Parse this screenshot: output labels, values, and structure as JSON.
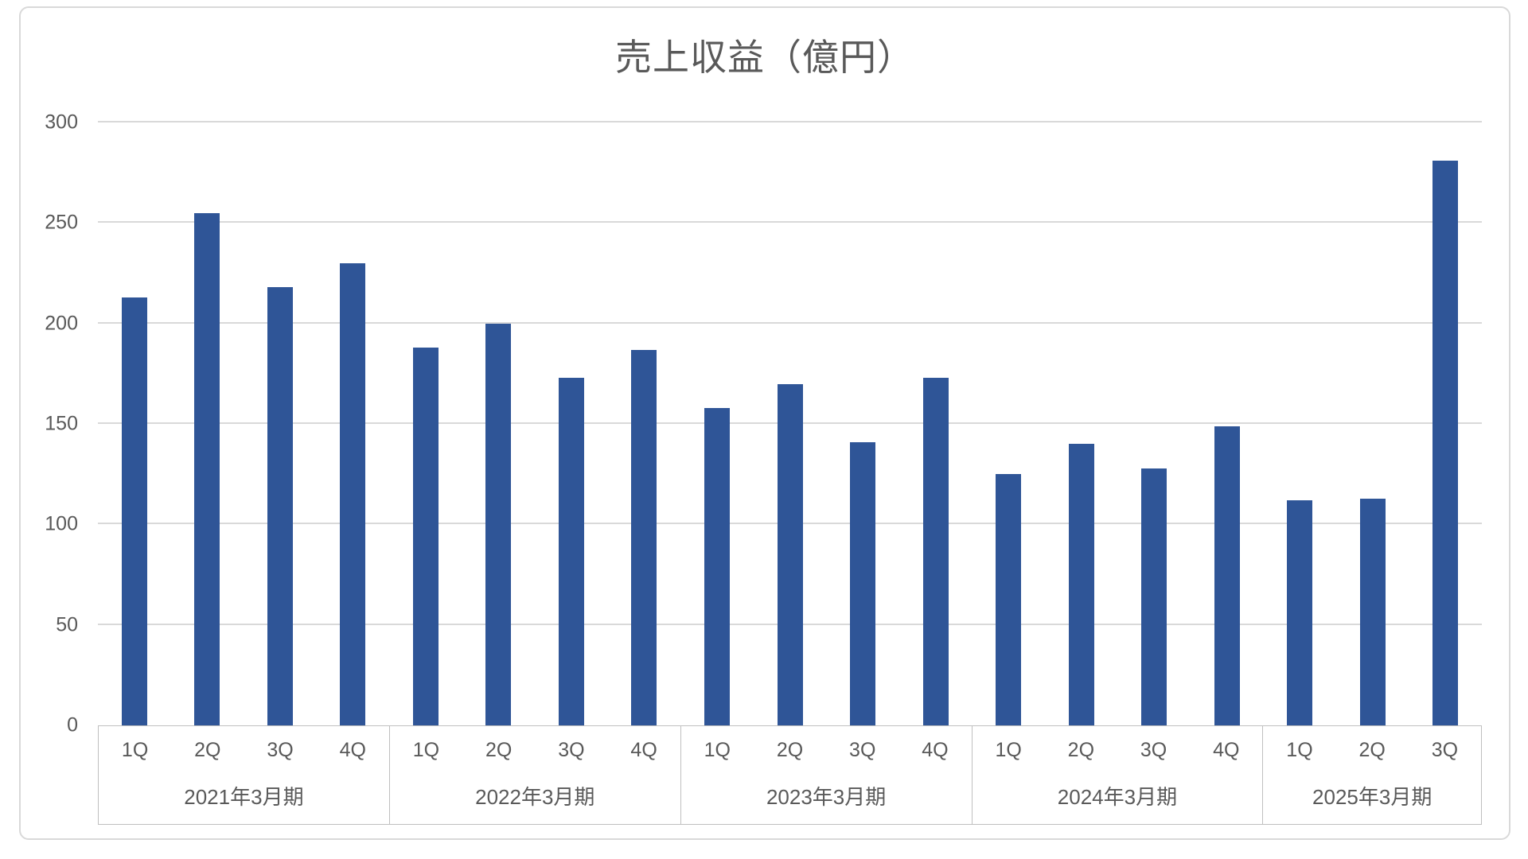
{
  "chart": {
    "bar_color": "#2F5597",
    "gridline_color": "#D9D9D9",
    "axis_line_color": "#BFBFBF",
    "text_color": "#595959"
  },
  "chart_data": {
    "type": "bar",
    "title": "売上収益（億円）",
    "ylabel": "",
    "xlabel": "",
    "ylim": [
      0,
      300
    ],
    "yticks": [
      0,
      50,
      100,
      150,
      200,
      250,
      300
    ],
    "grid": true,
    "legend": false,
    "categories": [
      "1Q",
      "2Q",
      "3Q",
      "4Q",
      "1Q",
      "2Q",
      "3Q",
      "4Q",
      "1Q",
      "2Q",
      "3Q",
      "4Q",
      "1Q",
      "2Q",
      "3Q",
      "4Q",
      "1Q",
      "2Q",
      "3Q"
    ],
    "values": [
      213,
      255,
      218,
      230,
      188,
      200,
      173,
      187,
      158,
      170,
      141,
      173,
      125,
      140,
      128,
      149,
      112,
      113,
      281
    ],
    "groups": [
      {
        "label": "2021年3月期",
        "quarters": [
          "1Q",
          "2Q",
          "3Q",
          "4Q"
        ],
        "values": [
          213,
          255,
          218,
          230
        ]
      },
      {
        "label": "2022年3月期",
        "quarters": [
          "1Q",
          "2Q",
          "3Q",
          "4Q"
        ],
        "values": [
          188,
          200,
          173,
          187
        ]
      },
      {
        "label": "2023年3月期",
        "quarters": [
          "1Q",
          "2Q",
          "3Q",
          "4Q"
        ],
        "values": [
          158,
          170,
          141,
          173
        ]
      },
      {
        "label": "2024年3月期",
        "quarters": [
          "1Q",
          "2Q",
          "3Q",
          "4Q"
        ],
        "values": [
          125,
          140,
          128,
          149
        ]
      },
      {
        "label": "2025年3月期",
        "quarters": [
          "1Q",
          "2Q",
          "3Q"
        ],
        "values": [
          112,
          113,
          281
        ]
      }
    ]
  }
}
